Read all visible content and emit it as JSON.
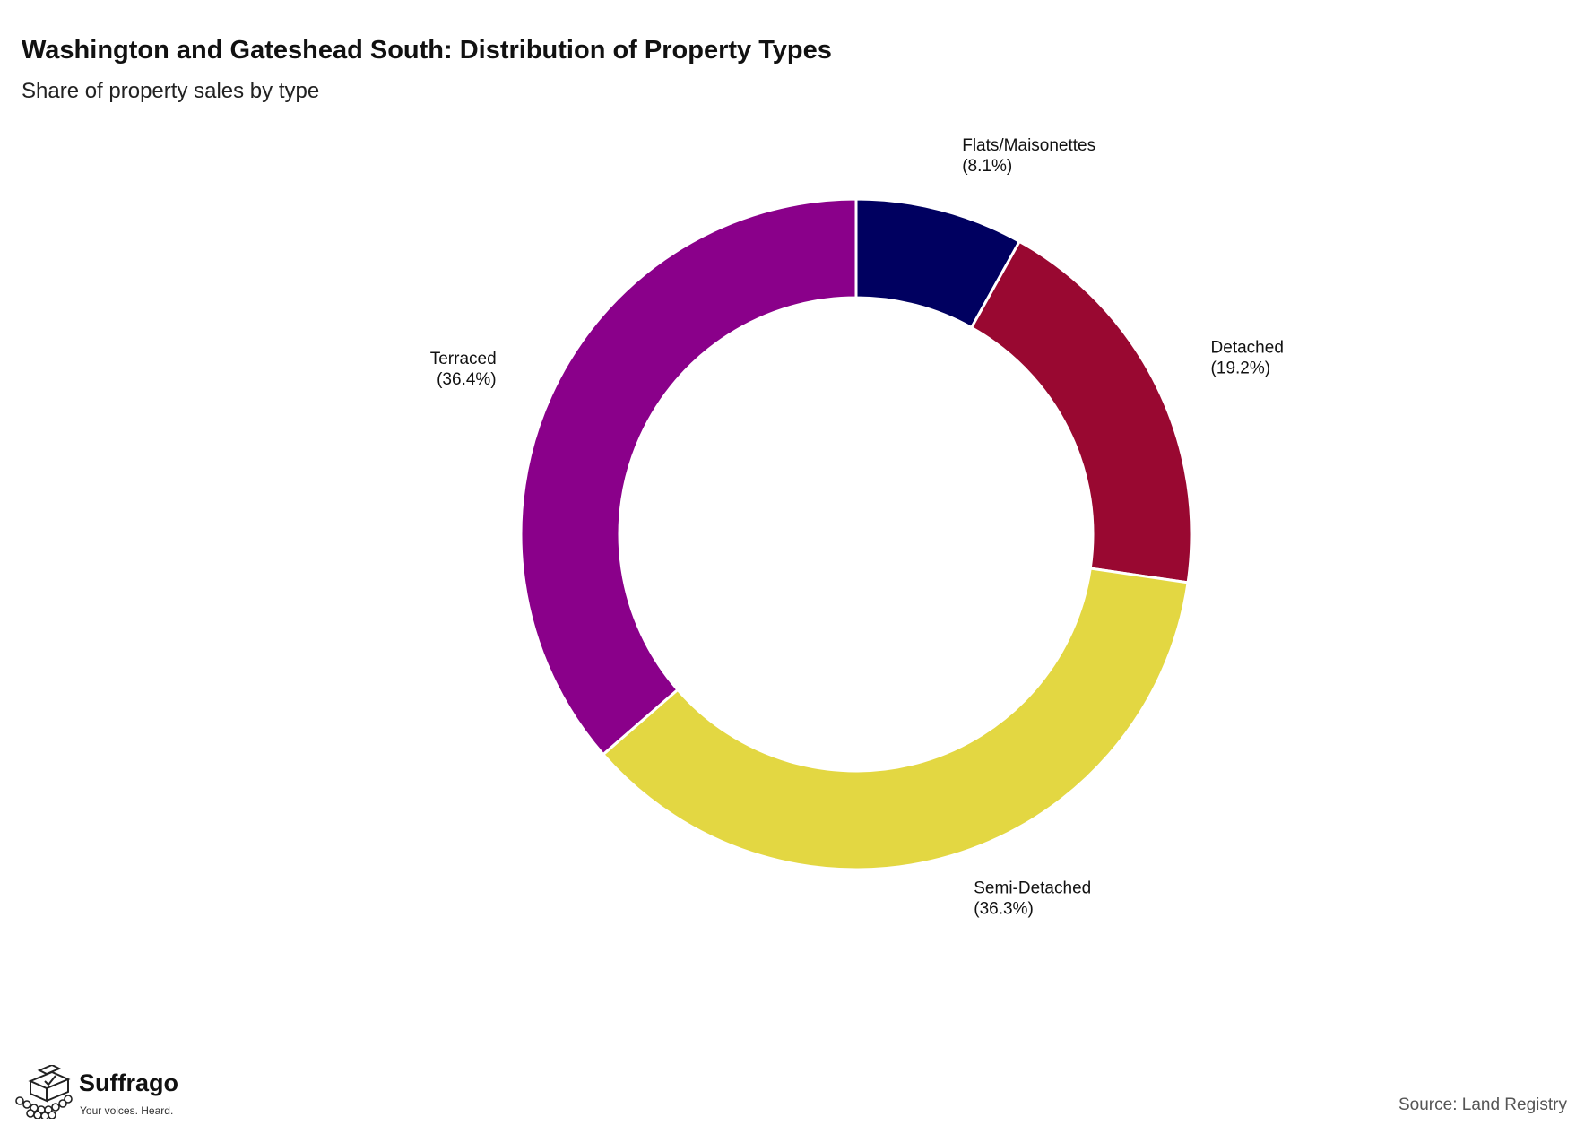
{
  "header": {
    "title": "Washington and Gateshead South: Distribution of Property Types",
    "subtitle": "Share of property sales by type"
  },
  "chart_data": {
    "type": "pie",
    "variant": "donut",
    "title": "Washington and Gateshead South: Distribution of Property Types",
    "subtitle": "Share of property sales by type",
    "categories": [
      "Flats/Maisonettes",
      "Detached",
      "Semi-Detached",
      "Terraced"
    ],
    "values": [
      8.1,
      19.2,
      36.3,
      36.4
    ],
    "labels": [
      "(8.1%)",
      "(19.2%)",
      "(36.3%)",
      "(36.4%)"
    ],
    "colors": [
      "#000060",
      "#990831",
      "#e3d742",
      "#8a008a"
    ],
    "start": "12 o'clock",
    "direction": "clockwise",
    "legend": "none"
  },
  "footer": {
    "brand_name": "Suffrago",
    "tagline": "Your voices. Heard.",
    "logo_icon": "ballot-box-crowd-icon",
    "source": "Source: Land Registry"
  }
}
